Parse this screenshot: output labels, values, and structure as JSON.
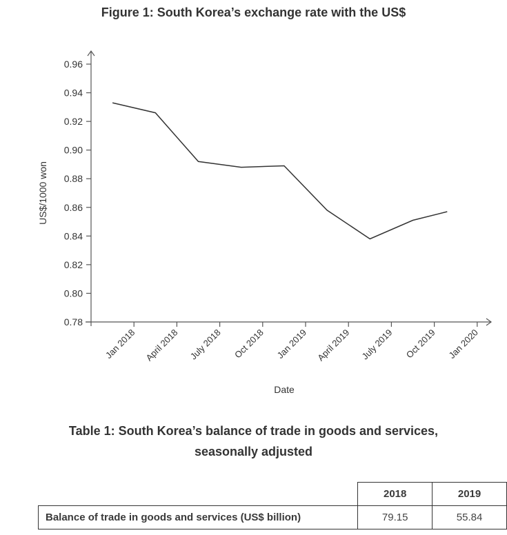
{
  "chart_data": {
    "type": "line",
    "title": "Figure 1: South Korea’s exchange rate with the US$",
    "xlabel": "Date",
    "ylabel": "US$/1000 won",
    "ylim": [
      0.78,
      0.96
    ],
    "yticks": [
      "0.78",
      "0.80",
      "0.82",
      "0.84",
      "0.86",
      "0.88",
      "0.90",
      "0.92",
      "0.94",
      "0.96"
    ],
    "xticks": [
      "Jan 2018",
      "April 2018",
      "July 2018",
      "Oct 2018",
      "Jan 2019",
      "April 2019",
      "July 2019",
      "Oct 2019",
      "Jan 2020"
    ],
    "grid": false,
    "legend": "none",
    "series": [
      {
        "name": "Exchange rate",
        "x_index": [
          0.5,
          1.5,
          2.5,
          3.5,
          4.5,
          5.5,
          6.5,
          7.5,
          8.3
        ],
        "values": [
          0.933,
          0.926,
          0.892,
          0.888,
          0.889,
          0.858,
          0.838,
          0.851,
          0.857
        ]
      }
    ]
  },
  "table": {
    "title_line1": "Table 1: South Korea’s balance of trade in goods and services,",
    "title_line2": "seasonally adjusted",
    "headers": [
      "2018",
      "2019"
    ],
    "rows": [
      {
        "label": "Balance of trade in goods and services (US$ billion)",
        "values": [
          "79.15",
          "55.84"
        ]
      }
    ]
  }
}
